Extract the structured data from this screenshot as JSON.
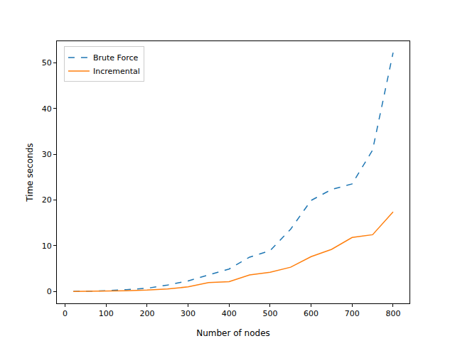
{
  "chart_data": {
    "type": "line",
    "x_label": "Number of nodes",
    "y_label": "Time seconds",
    "x": [
      20,
      50,
      100,
      150,
      200,
      250,
      300,
      350,
      400,
      450,
      500,
      550,
      600,
      650,
      700,
      750,
      800
    ],
    "series": [
      {
        "name": "Brute Force",
        "color": "#1f77b4",
        "line_style": "dashed",
        "values": [
          0.0,
          0.05,
          0.15,
          0.4,
          0.7,
          1.4,
          2.3,
          3.6,
          4.9,
          7.5,
          8.9,
          13.6,
          19.9,
          22.3,
          23.5,
          30.9,
          52.2
        ]
      },
      {
        "name": "Incremental",
        "color": "#ff7f0e",
        "line_style": "solid",
        "values": [
          0.0,
          0.02,
          0.07,
          0.15,
          0.3,
          0.55,
          1.0,
          1.95,
          2.15,
          3.6,
          4.2,
          5.3,
          7.6,
          9.2,
          11.8,
          12.4,
          17.4
        ]
      }
    ],
    "xlim": [
      -20,
      840
    ],
    "xticks": [
      0,
      100,
      200,
      300,
      400,
      500,
      600,
      700,
      800
    ],
    "ylim": [
      -2.6,
      54.7
    ],
    "yticks": [
      0,
      10,
      20,
      30,
      40,
      50
    ],
    "grid": false,
    "legend": "upper left"
  }
}
